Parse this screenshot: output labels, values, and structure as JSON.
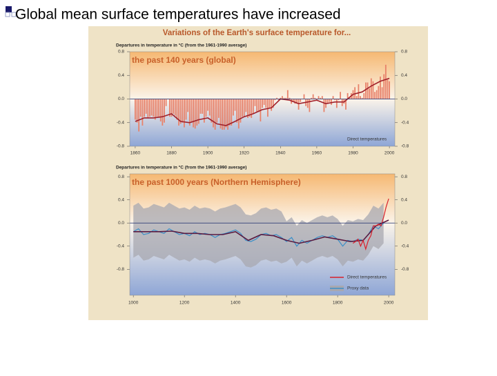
{
  "slide": {
    "title": "Global mean surface temperatures have increased"
  },
  "figure": {
    "title": "Variations of the Earth's surface temperature for..."
  },
  "chart_data": [
    {
      "type": "bar",
      "title": "the past 140 years (global)",
      "ylabel": "Departures in temperature in °C (from the 1961-1990 average)",
      "xlim": [
        1857,
        2003
      ],
      "xticks": [
        1860,
        1880,
        1900,
        1920,
        1940,
        1960,
        1980,
        2000
      ],
      "ylim": [
        -0.8,
        0.8
      ],
      "yticks": [
        -0.8,
        -0.4,
        {
          "value": 0,
          "label": "0.0"
        },
        0.4,
        0.8
      ],
      "legend": "lower right",
      "legend_markers": false,
      "series": [
        {
          "name": "Direct temperatures",
          "type": "bar",
          "color": "#e8826a",
          "x": [
            1860,
            1861,
            1862,
            1863,
            1864,
            1865,
            1866,
            1867,
            1868,
            1869,
            1870,
            1871,
            1872,
            1873,
            1874,
            1875,
            1876,
            1877,
            1878,
            1879,
            1880,
            1881,
            1882,
            1883,
            1884,
            1885,
            1886,
            1887,
            1888,
            1889,
            1890,
            1891,
            1892,
            1893,
            1894,
            1895,
            1896,
            1897,
            1898,
            1899,
            1900,
            1901,
            1902,
            1903,
            1904,
            1905,
            1906,
            1907,
            1908,
            1909,
            1910,
            1911,
            1912,
            1913,
            1914,
            1915,
            1916,
            1917,
            1918,
            1919,
            1920,
            1921,
            1922,
            1923,
            1924,
            1925,
            1926,
            1927,
            1928,
            1929,
            1930,
            1931,
            1932,
            1933,
            1934,
            1935,
            1936,
            1937,
            1938,
            1939,
            1940,
            1941,
            1942,
            1943,
            1944,
            1945,
            1946,
            1947,
            1948,
            1949,
            1950,
            1951,
            1952,
            1953,
            1954,
            1955,
            1956,
            1957,
            1958,
            1959,
            1960,
            1961,
            1962,
            1963,
            1964,
            1965,
            1966,
            1967,
            1968,
            1969,
            1970,
            1971,
            1972,
            1973,
            1974,
            1975,
            1976,
            1977,
            1978,
            1979,
            1980,
            1981,
            1982,
            1983,
            1984,
            1985,
            1986,
            1987,
            1988,
            1989,
            1990,
            1991,
            1992,
            1993,
            1994,
            1995,
            1996,
            1997,
            1998,
            1999,
            2000
          ],
          "values": [
            -0.35,
            -0.4,
            -0.55,
            -0.3,
            -0.45,
            -0.3,
            -0.25,
            -0.32,
            -0.3,
            -0.28,
            -0.3,
            -0.35,
            -0.3,
            -0.3,
            -0.38,
            -0.45,
            -0.4,
            -0.12,
            0,
            -0.3,
            -0.3,
            -0.25,
            -0.28,
            -0.35,
            -0.45,
            -0.42,
            -0.4,
            -0.48,
            -0.35,
            -0.22,
            -0.45,
            -0.4,
            -0.48,
            -0.5,
            -0.45,
            -0.42,
            -0.25,
            -0.25,
            -0.4,
            -0.3,
            -0.2,
            -0.28,
            -0.4,
            -0.48,
            -0.52,
            -0.4,
            -0.32,
            -0.5,
            -0.52,
            -0.52,
            -0.48,
            -0.52,
            -0.45,
            -0.45,
            -0.28,
            -0.2,
            -0.4,
            -0.5,
            -0.4,
            -0.3,
            -0.3,
            -0.22,
            -0.32,
            -0.3,
            -0.32,
            -0.25,
            -0.12,
            -0.22,
            -0.22,
            -0.38,
            -0.15,
            -0.1,
            -0.15,
            -0.3,
            -0.15,
            -0.2,
            -0.15,
            -0.02,
            0.02,
            -0.02,
            0.02,
            0.05,
            0.02,
            0.02,
            0.15,
            0.02,
            -0.08,
            -0.05,
            -0.08,
            -0.08,
            -0.18,
            -0.05,
            0,
            0.08,
            -0.12,
            -0.15,
            -0.22,
            0.02,
            0.08,
            0.02,
            -0.02,
            0.05,
            0.02,
            0.05,
            -0.22,
            -0.15,
            -0.08,
            -0.05,
            -0.1,
            0.05,
            -0.02,
            -0.15,
            -0.02,
            0.12,
            -0.12,
            -0.08,
            -0.18,
            0.1,
            0.02,
            0.1,
            0.15,
            0.2,
            0.05,
            0.25,
            0.05,
            0.02,
            0.1,
            0.28,
            0.28,
            0.18,
            0.35,
            0.3,
            0.12,
            0.15,
            0.22,
            0.38,
            0.2,
            0.42,
            0.58,
            0.33,
            0.3
          ]
        },
        {
          "type": "line",
          "color": "#a0202a",
          "x": [
            1860,
            1865,
            1870,
            1875,
            1880,
            1885,
            1890,
            1895,
            1900,
            1905,
            1910,
            1915,
            1920,
            1925,
            1930,
            1935,
            1940,
            1945,
            1950,
            1955,
            1960,
            1965,
            1970,
            1975,
            1980,
            1985,
            1990,
            1995,
            2000
          ],
          "values": [
            -0.38,
            -0.32,
            -0.32,
            -0.3,
            -0.25,
            -0.38,
            -0.4,
            -0.35,
            -0.32,
            -0.42,
            -0.45,
            -0.38,
            -0.3,
            -0.25,
            -0.18,
            -0.15,
            0,
            -0.02,
            -0.08,
            -0.05,
            -0.02,
            -0.08,
            -0.05,
            -0.05,
            0.08,
            0.12,
            0.22,
            0.3,
            0.35
          ]
        }
      ]
    },
    {
      "type": "line",
      "title": "the past 1000 years (Northern Hemisphere)",
      "ylabel": "Departures in temperature in °C (from the 1961-1990 average)",
      "xlim": [
        986,
        2024
      ],
      "xticks": [
        1000,
        1200,
        1400,
        1600,
        1800,
        2000
      ],
      "ylim": [
        -1.25,
        0.85
      ],
      "yticks": [
        -0.8,
        -0.4,
        {
          "value": 0,
          "label": "0.0"
        },
        0.4,
        0.8
      ],
      "legend": "lower right",
      "legend_markers": true,
      "series": [
        {
          "type": "band",
          "color": "#a8a8b0",
          "x": [
            1000,
            1020,
            1040,
            1060,
            1080,
            1100,
            1120,
            1140,
            1160,
            1180,
            1200,
            1220,
            1240,
            1260,
            1280,
            1300,
            1320,
            1340,
            1360,
            1380,
            1400,
            1420,
            1440,
            1460,
            1480,
            1500,
            1520,
            1540,
            1560,
            1580,
            1600,
            1620,
            1640,
            1660,
            1680,
            1700,
            1720,
            1740,
            1760,
            1780,
            1800,
            1820,
            1840,
            1860,
            1880,
            1900,
            1920,
            1940,
            1960,
            1980
          ],
          "lower": [
            -0.6,
            -0.55,
            -0.65,
            -0.63,
            -0.57,
            -0.6,
            -0.63,
            -0.55,
            -0.6,
            -0.65,
            -0.63,
            -0.67,
            -0.6,
            -0.65,
            -0.63,
            -0.65,
            -0.7,
            -0.65,
            -0.63,
            -0.6,
            -0.57,
            -0.63,
            -0.75,
            -0.77,
            -0.73,
            -0.65,
            -0.63,
            -0.67,
            -0.65,
            -0.7,
            -0.67,
            -0.6,
            -0.75,
            -0.65,
            -0.7,
            -0.65,
            -0.6,
            -0.57,
            -0.6,
            -0.57,
            -0.63,
            -0.75,
            -0.65,
            -0.67,
            -0.63,
            -0.65,
            -0.55,
            -0.4,
            -0.45,
            -0.35
          ],
          "upper": [
            0.3,
            0.35,
            0.25,
            0.27,
            0.33,
            0.3,
            0.27,
            0.35,
            0.3,
            0.25,
            0.27,
            0.23,
            0.3,
            0.25,
            0.27,
            0.25,
            0.2,
            0.25,
            0.27,
            0.3,
            0.33,
            0.27,
            0.15,
            0.13,
            0.17,
            0.25,
            0.27,
            0.23,
            0.25,
            0.2,
            0.03,
            0.1,
            -0.05,
            0.05,
            0,
            0.05,
            0.1,
            0.13,
            0.1,
            0.13,
            0.07,
            -0.05,
            0.05,
            0.03,
            0.07,
            0.05,
            0.15,
            0.3,
            0.25,
            0.35
          ]
        },
        {
          "name": "Proxy data",
          "type": "line",
          "color": "#3a8fc8",
          "band_color": "#a8a8b0",
          "x": [
            1000,
            1020,
            1040,
            1060,
            1080,
            1100,
            1120,
            1140,
            1160,
            1180,
            1200,
            1220,
            1240,
            1260,
            1280,
            1300,
            1320,
            1340,
            1360,
            1380,
            1400,
            1420,
            1440,
            1460,
            1480,
            1500,
            1520,
            1540,
            1560,
            1580,
            1600,
            1620,
            1640,
            1660,
            1680,
            1700,
            1720,
            1740,
            1760,
            1780,
            1800,
            1820,
            1840,
            1860,
            1880,
            1900,
            1920,
            1940,
            1960,
            1980
          ],
          "values": [
            -0.15,
            -0.1,
            -0.2,
            -0.18,
            -0.12,
            -0.15,
            -0.18,
            -0.1,
            -0.15,
            -0.2,
            -0.18,
            -0.22,
            -0.15,
            -0.2,
            -0.18,
            -0.2,
            -0.25,
            -0.2,
            -0.18,
            -0.15,
            -0.12,
            -0.18,
            -0.3,
            -0.32,
            -0.28,
            -0.2,
            -0.18,
            -0.22,
            -0.2,
            -0.25,
            -0.32,
            -0.25,
            -0.4,
            -0.3,
            -0.35,
            -0.3,
            -0.25,
            -0.22,
            -0.25,
            -0.22,
            -0.28,
            -0.4,
            -0.3,
            -0.32,
            -0.28,
            -0.3,
            -0.2,
            -0.05,
            -0.1,
            0
          ]
        },
        {
          "type": "line",
          "color": "#5a1a40",
          "x": [
            1000,
            1050,
            1100,
            1150,
            1200,
            1250,
            1300,
            1350,
            1400,
            1450,
            1500,
            1550,
            1600,
            1650,
            1700,
            1750,
            1800,
            1850,
            1900,
            1950,
            2000
          ],
          "values": [
            -0.15,
            -0.15,
            -0.15,
            -0.14,
            -0.18,
            -0.18,
            -0.2,
            -0.2,
            -0.15,
            -0.3,
            -0.2,
            -0.22,
            -0.3,
            -0.35,
            -0.3,
            -0.24,
            -0.28,
            -0.32,
            -0.3,
            -0.05,
            0.05
          ]
        },
        {
          "name": "Direct temperatures",
          "type": "line",
          "color": "#d8202a",
          "x": [
            1860,
            1870,
            1880,
            1890,
            1900,
            1910,
            1920,
            1930,
            1940,
            1950,
            1960,
            1970,
            1980,
            1990,
            2000
          ],
          "values": [
            -0.35,
            -0.32,
            -0.28,
            -0.4,
            -0.3,
            -0.45,
            -0.3,
            -0.22,
            -0.05,
            -0.05,
            -0.02,
            -0.05,
            0.1,
            0.28,
            0.42
          ]
        }
      ]
    }
  ]
}
